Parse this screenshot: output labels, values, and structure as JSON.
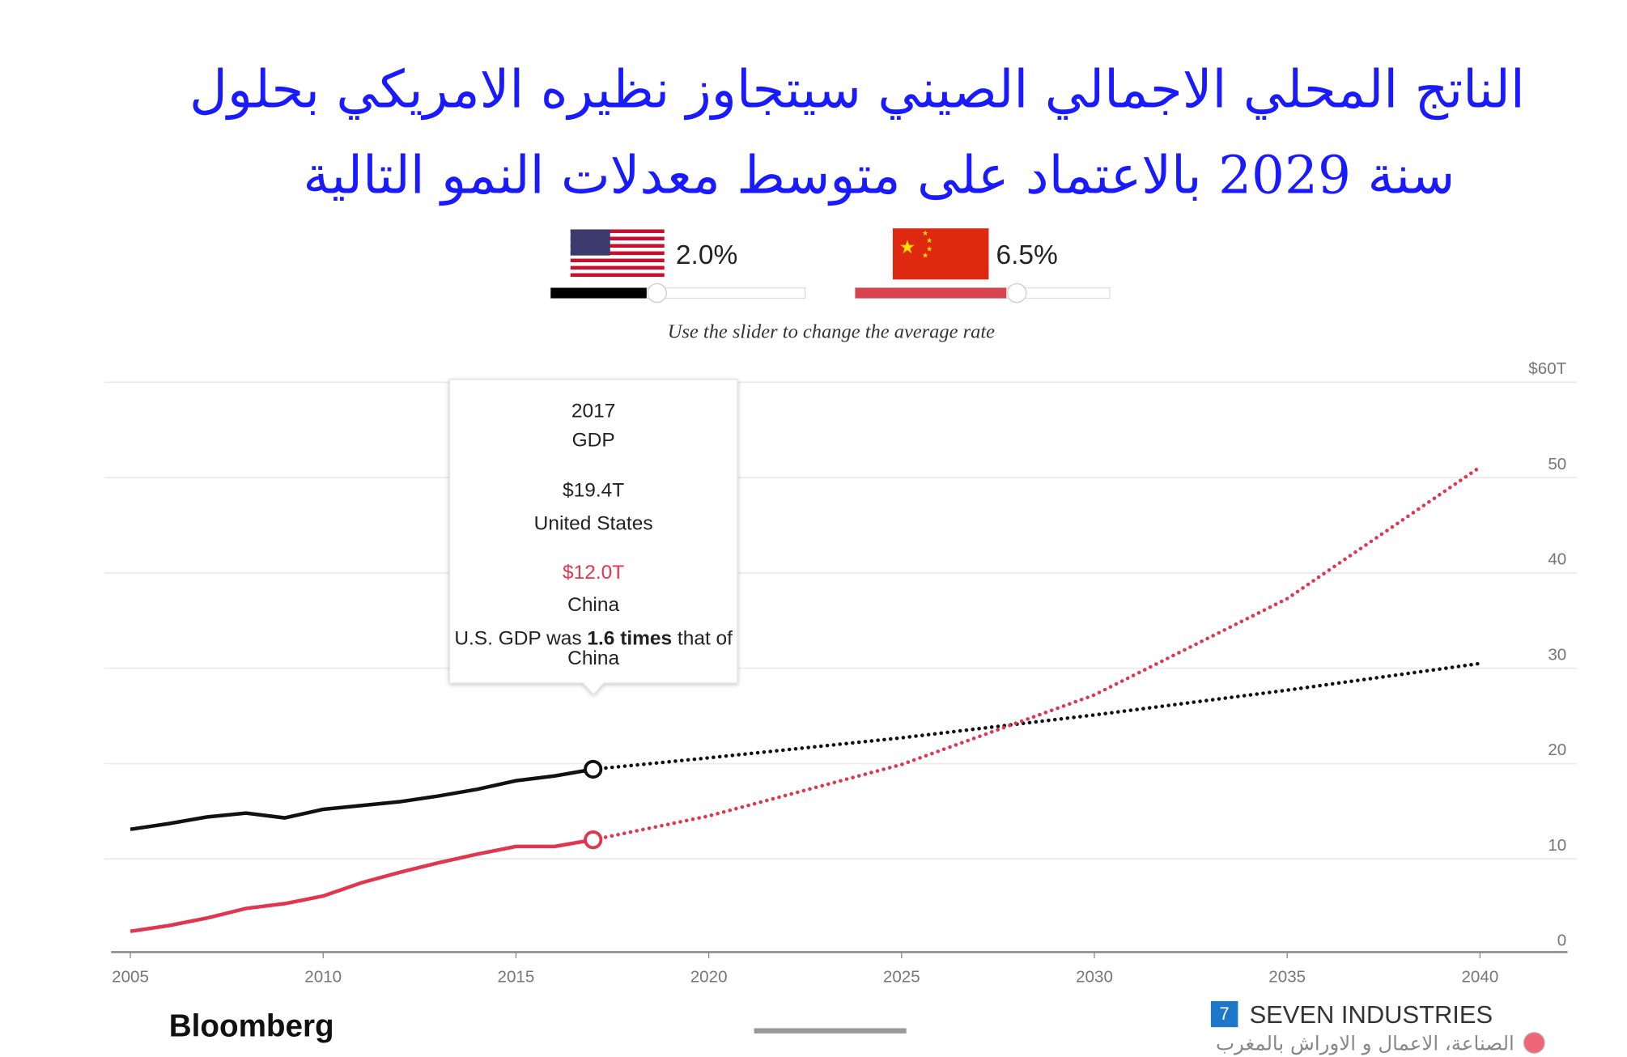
{
  "header": {
    "title_lines": [
      "الناتج المحلي الاجمالي الصيني سيتجاوز نظيره الامريكي بحلول",
      "سنة 2029 بالاعتماد على متوسط معدلات النمو التالية"
    ]
  },
  "controls": {
    "rates": [
      {
        "value": 2.0,
        "label": "2.0%"
      },
      {
        "value": 6.5,
        "label": "6.5%"
      }
    ],
    "note": "Use the slider to change the average rate"
  },
  "chart_data": {
    "type": "line",
    "x": [
      2005,
      2006,
      2007,
      2008,
      2009,
      2010,
      2011,
      2012,
      2013,
      2014,
      2015,
      2016,
      2017,
      2020,
      2025,
      2030,
      2035,
      2040
    ],
    "series": [
      {
        "name": "United States",
        "color": "#111111",
        "values": [
          13.1,
          13.7,
          14.4,
          14.8,
          14.3,
          15.2,
          15.6,
          16.0,
          16.6,
          17.3,
          18.2,
          18.7,
          19.4,
          20.6,
          22.7,
          25.1,
          27.7,
          30.5
        ]
      },
      {
        "name": "China",
        "color": "#e0364f",
        "values": [
          2.4,
          3.0,
          3.8,
          4.8,
          5.3,
          6.1,
          7.5,
          8.6,
          9.6,
          10.5,
          11.3,
          11.3,
          12.0,
          14.5,
          19.9,
          27.2,
          37.3,
          51.1
        ]
      }
    ],
    "xlim": [
      2004.5,
      2042
    ],
    "xticks": [
      2005,
      2010,
      2015,
      2020,
      2025,
      2030,
      2035,
      2040
    ],
    "ylim": [
      0,
      60
    ],
    "yticks": [
      0,
      10,
      20,
      30,
      40,
      50,
      {
        "value": 60,
        "label": "$60T"
      }
    ],
    "grid": true,
    "tooltip": {
      "year": 2017,
      "metric": "GDP",
      "values": [
        "$19.4T",
        "$12.0T"
      ],
      "note": [
        "U.S. GDP was ",
        "1.6 times",
        " that of",
        "China"
      ]
    }
  },
  "footer": {
    "brand": "Bloomberg",
    "badge": "7",
    "channel": "SEVEN INDUSTRIES",
    "tagline": "الصناعة، الاعمال و الاوراش بالمغرب"
  }
}
